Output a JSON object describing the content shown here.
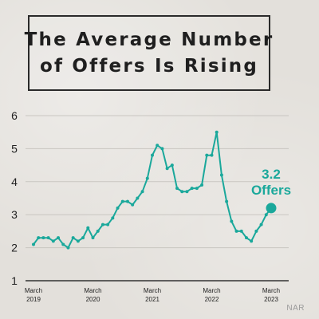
{
  "title": {
    "line1": "The Average Number",
    "line2": "of Offers Is Rising"
  },
  "source": "NAR",
  "colors": {
    "line": "#1aa89b",
    "axis": "#333333",
    "grid": "#c9c6c1",
    "callout": "#1aa89b"
  },
  "chart_data": {
    "type": "line",
    "title": "The Average Number of Offers Is Rising",
    "xlabel": "",
    "ylabel": "",
    "ylim": [
      1,
      6
    ],
    "yticks": [
      1,
      2,
      3,
      4,
      5,
      6
    ],
    "grid": true,
    "x_tick_labels": [
      {
        "month": "March",
        "year": "2019",
        "index": 0
      },
      {
        "month": "March",
        "year": "2020",
        "index": 12
      },
      {
        "month": "March",
        "year": "2021",
        "index": 24
      },
      {
        "month": "March",
        "year": "2022",
        "index": 36
      },
      {
        "month": "March",
        "year": "2023",
        "index": 48
      }
    ],
    "series": [
      {
        "values": [
          2.1,
          2.3,
          2.3,
          2.3,
          2.2,
          2.3,
          2.1,
          2.0,
          2.3,
          2.2,
          2.3,
          2.6,
          2.3,
          2.5,
          2.7,
          2.7,
          2.9,
          3.2,
          3.4,
          3.4,
          3.3,
          3.5,
          3.7,
          4.1,
          4.8,
          5.1,
          5.0,
          4.4,
          4.5,
          3.8,
          3.7,
          3.7,
          3.8,
          3.8,
          3.9,
          4.8,
          4.8,
          5.5,
          4.2,
          3.4,
          2.8,
          2.5,
          2.5,
          2.3,
          2.2,
          2.5,
          2.7,
          3.0,
          3.2
        ]
      }
    ],
    "annotation": {
      "value": "3.2",
      "unit": "Offers"
    }
  }
}
